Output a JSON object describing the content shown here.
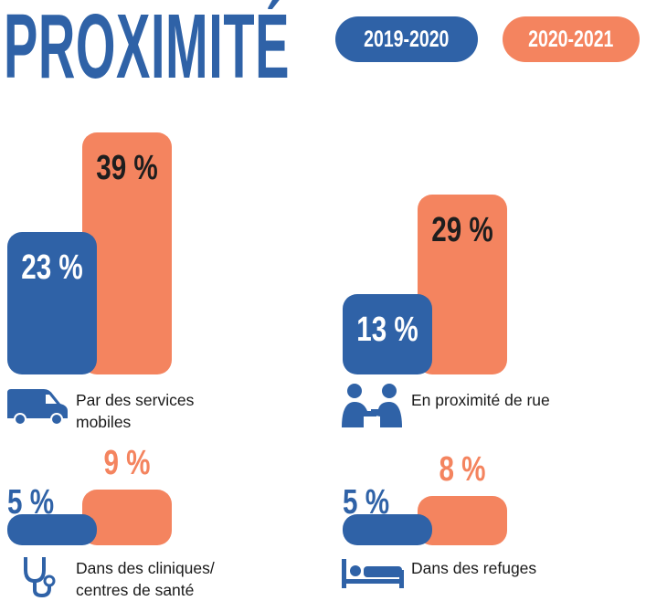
{
  "chart_data": {
    "type": "bar",
    "title": "PROXIMITÉ",
    "categories": [
      "Par des services mobiles",
      "En proximité de rue",
      "Dans des cliniques/ centres de santé",
      "Dans des refuges"
    ],
    "series": [
      {
        "name": "2019-2020",
        "color": "#2f62a7",
        "values": [
          23,
          13,
          5,
          5
        ],
        "value_labels": [
          "23 %",
          "13 %",
          "5 %",
          "5 %"
        ]
      },
      {
        "name": "2020-2021",
        "color": "#f4845f",
        "values": [
          39,
          29,
          9,
          8
        ],
        "value_labels": [
          "39 %",
          "29 %",
          "9 %",
          "8 %"
        ]
      }
    ]
  }
}
